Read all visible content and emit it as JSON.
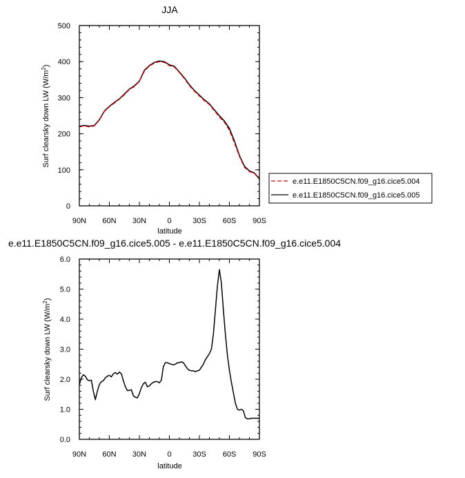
{
  "chart_data": [
    {
      "type": "line",
      "title": "JJA",
      "xlabel": "latitude",
      "ylabel": "Surf clearsky down LW (W/m²)",
      "ylabel_main": "Surf clearsky down LW (W/m",
      "ylabel_sup": "2",
      "ylabel_tail": ")",
      "xlim": [
        90,
        -90
      ],
      "ylim": [
        0,
        500
      ],
      "x_ticks": [
        90,
        60,
        30,
        0,
        -30,
        -60,
        -90
      ],
      "x_tick_labels": [
        "90N",
        "60N",
        "30N",
        "0",
        "30S",
        "60S",
        "90S"
      ],
      "y_ticks": [
        0,
        100,
        200,
        300,
        400,
        500
      ],
      "y_tick_labels": [
        "0",
        "100",
        "200",
        "300",
        "400",
        "500"
      ],
      "grid": false,
      "legend_position": "right",
      "legend": [
        "e.e11.E1850C5CN.f09_g16.cice5.004",
        "e.e11.E1850C5CN.f09_g16.cice5.005"
      ],
      "series": [
        {
          "name": "e.e11.E1850C5CN.f09_g16.cice5.004",
          "color": "#cc0000",
          "dash": "dashed",
          "x": [
            90,
            85,
            80,
            75,
            70,
            65,
            60,
            55,
            50,
            45,
            40,
            35,
            30,
            25,
            20,
            15,
            10,
            5,
            0,
            -5,
            -10,
            -15,
            -20,
            -25,
            -30,
            -35,
            -40,
            -45,
            -50,
            -55,
            -60,
            -65,
            -70,
            -75,
            -80,
            -85,
            -90
          ],
          "y": [
            219,
            222,
            219,
            222,
            238,
            262,
            275,
            285,
            296,
            308,
            323,
            331,
            345,
            374,
            388,
            396,
            400,
            398,
            389,
            385,
            370,
            353,
            334,
            318,
            305,
            292,
            281,
            264,
            247,
            232,
            210,
            175,
            138,
            107,
            95,
            90,
            74
          ]
        },
        {
          "name": "e.e11.E1850C5CN.f09_g16.cice5.005",
          "color": "#000000",
          "dash": "solid",
          "x": [
            90,
            85,
            80,
            75,
            70,
            65,
            60,
            55,
            50,
            45,
            40,
            35,
            30,
            25,
            20,
            15,
            10,
            5,
            0,
            -5,
            -10,
            -15,
            -20,
            -25,
            -30,
            -35,
            -40,
            -45,
            -50,
            -55,
            -60,
            -65,
            -70,
            -75,
            -80,
            -85,
            -90
          ],
          "y": [
            221,
            223,
            221,
            223,
            239,
            263,
            276,
            287,
            297,
            310,
            324,
            333,
            346,
            376,
            389,
            398,
            402,
            400,
            391,
            387,
            371,
            355,
            336,
            320,
            307,
            294,
            283,
            266,
            250,
            235,
            215,
            180,
            140,
            110,
            97,
            91,
            75
          ]
        }
      ]
    },
    {
      "type": "line",
      "title": "e.e11.E1850C5CN.f09_g16.cice5.005 - e.e11.E1850C5CN.f09_g16.cice5.004",
      "xlabel": "latitude",
      "ylabel": "Surf clearsky down LW (W/m²)",
      "ylabel_main": "Surf clearsky down LW (W/m",
      "ylabel_sup": "2",
      "ylabel_tail": ")",
      "xlim": [
        90,
        -90
      ],
      "ylim": [
        0,
        6
      ],
      "x_ticks": [
        90,
        60,
        30,
        0,
        -30,
        -60,
        -90
      ],
      "x_tick_labels": [
        "90N",
        "60N",
        "30N",
        "0",
        "30S",
        "60S",
        "90S"
      ],
      "y_ticks": [
        0,
        1,
        2,
        3,
        4,
        5,
        6
      ],
      "y_tick_labels": [
        "0.0",
        "1.0",
        "2.0",
        "3.0",
        "4.0",
        "5.0",
        "6.0"
      ],
      "grid": false,
      "series": [
        {
          "color": "#000000",
          "dash": "solid",
          "x": [
            90,
            88,
            86,
            84,
            82,
            80,
            78,
            76,
            74,
            72,
            70,
            68,
            66,
            64,
            62,
            60,
            58,
            56,
            54,
            52,
            50,
            48,
            46,
            44,
            42,
            40,
            38,
            36,
            34,
            32,
            30,
            28,
            26,
            24,
            22,
            20,
            18,
            16,
            14,
            12,
            10,
            8,
            6,
            4,
            2,
            0,
            -2,
            -4,
            -6,
            -8,
            -10,
            -12,
            -14,
            -16,
            -18,
            -20,
            -22,
            -24,
            -26,
            -28,
            -30,
            -32,
            -34,
            -36,
            -38,
            -40,
            -42,
            -44,
            -46,
            -48,
            -50,
            -52,
            -54,
            -56,
            -58,
            -60,
            -62,
            -64,
            -66,
            -68,
            -70,
            -72,
            -74,
            -76,
            -78,
            -80,
            -82,
            -84,
            -86,
            -88,
            -90
          ],
          "y": [
            1.82,
            2.05,
            2.15,
            2.1,
            1.98,
            1.95,
            1.97,
            1.6,
            1.32,
            1.6,
            1.82,
            1.92,
            1.95,
            2.05,
            2.1,
            2.13,
            2.08,
            2.18,
            2.22,
            2.17,
            2.24,
            2.18,
            1.95,
            1.75,
            1.62,
            1.63,
            1.65,
            1.45,
            1.4,
            1.38,
            1.52,
            1.72,
            1.85,
            1.9,
            1.75,
            1.78,
            1.85,
            1.9,
            1.92,
            1.92,
            1.88,
            1.97,
            2.42,
            2.55,
            2.55,
            2.52,
            2.5,
            2.48,
            2.5,
            2.55,
            2.55,
            2.58,
            2.55,
            2.45,
            2.35,
            2.3,
            2.28,
            2.28,
            2.25,
            2.28,
            2.3,
            2.4,
            2.5,
            2.65,
            2.75,
            2.85,
            3.0,
            3.5,
            4.3,
            5.1,
            5.65,
            5.2,
            4.3,
            3.5,
            2.8,
            2.3,
            1.9,
            1.55,
            1.2,
            1.0,
            0.97,
            1.0,
            0.95,
            0.72,
            0.68,
            0.68,
            0.7,
            0.7,
            0.7,
            0.7,
            0.7
          ]
        }
      ]
    }
  ]
}
